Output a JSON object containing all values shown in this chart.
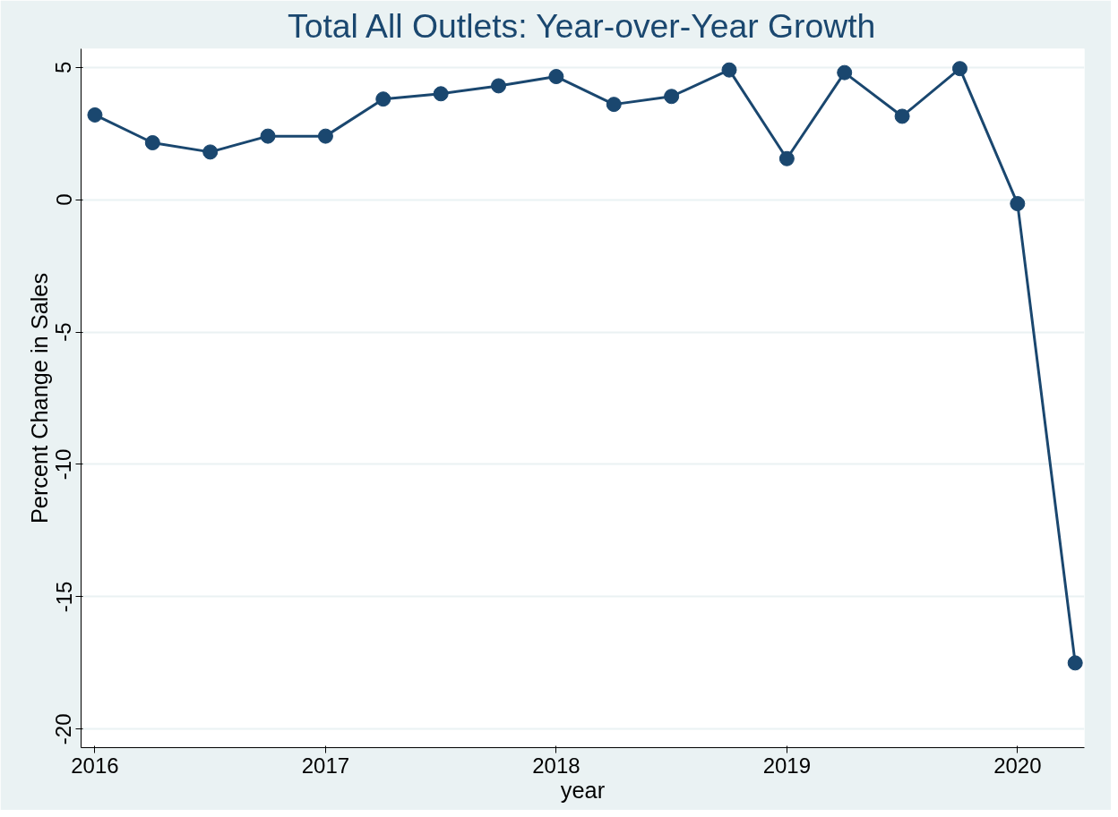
{
  "chart_data": {
    "type": "line",
    "title": "Total All Outlets: Year-over-Year Growth",
    "xlabel": "year",
    "ylabel": "Percent Change in Sales",
    "x": [
      2016,
      2016.25,
      2016.5,
      2016.75,
      2017,
      2017.25,
      2017.5,
      2017.75,
      2018,
      2018.25,
      2018.5,
      2018.75,
      2019,
      2019.25,
      2019.5,
      2019.75,
      2020,
      2020.25
    ],
    "series": [
      {
        "color": "#1a476f",
        "values": [
          3.2,
          2.15,
          1.8,
          2.4,
          2.4,
          3.8,
          4.0,
          4.3,
          4.65,
          3.6,
          3.9,
          4.9,
          1.55,
          4.8,
          3.15,
          4.95,
          -0.15,
          -17.5
        ]
      }
    ],
    "xlim": [
      2015.94,
      2020.29
    ],
    "ylim": [
      -20.7,
      5.7
    ],
    "xticks": [
      2016,
      2017,
      2018,
      2019,
      2020
    ],
    "yticks": [
      -20,
      -15,
      -10,
      -5,
      0,
      5
    ],
    "grid": "y",
    "marker": "circle",
    "line_style": "solid"
  }
}
